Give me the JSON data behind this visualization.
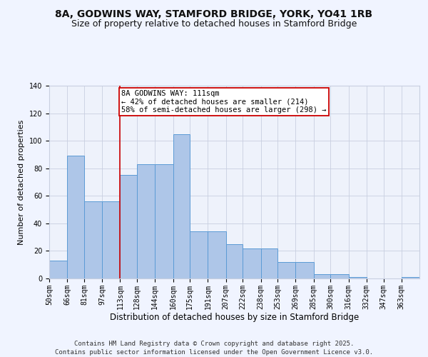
{
  "title_line1": "8A, GODWINS WAY, STAMFORD BRIDGE, YORK, YO41 1RB",
  "title_line2": "Size of property relative to detached houses in Stamford Bridge",
  "xlabel": "Distribution of detached houses by size in Stamford Bridge",
  "ylabel": "Number of detached properties",
  "bins": [
    "50sqm",
    "66sqm",
    "81sqm",
    "97sqm",
    "113sqm",
    "128sqm",
    "144sqm",
    "160sqm",
    "175sqm",
    "191sqm",
    "207sqm",
    "222sqm",
    "238sqm",
    "253sqm",
    "269sqm",
    "285sqm",
    "300sqm",
    "316sqm",
    "332sqm",
    "347sqm",
    "363sqm"
  ],
  "bar_values": [
    13,
    89,
    56,
    56,
    75,
    83,
    83,
    105,
    34,
    34,
    25,
    22,
    22,
    12,
    12,
    3,
    3,
    1,
    0,
    0,
    1
  ],
  "bin_edges": [
    50,
    66,
    81,
    97,
    113,
    128,
    144,
    160,
    175,
    191,
    207,
    222,
    238,
    253,
    269,
    285,
    300,
    316,
    332,
    347,
    363,
    379
  ],
  "bar_color": "#aec6e8",
  "bar_edge_color": "#5b9bd5",
  "vline_x": 113,
  "vline_color": "#cc0000",
  "annotation_text": "8A GODWINS WAY: 111sqm\n← 42% of detached houses are smaller (214)\n58% of semi-detached houses are larger (298) →",
  "annotation_box_color": "#ffffff",
  "annotation_border_color": "#cc0000",
  "ylim": [
    0,
    140
  ],
  "yticks": [
    0,
    20,
    40,
    60,
    80,
    100,
    120,
    140
  ],
  "background_color": "#eef2fb",
  "grid_color": "#c8cfe0",
  "footer_text": "Contains HM Land Registry data © Crown copyright and database right 2025.\nContains public sector information licensed under the Open Government Licence v3.0.",
  "title_fontsize": 10,
  "subtitle_fontsize": 9,
  "ylabel_fontsize": 8,
  "xlabel_fontsize": 8.5,
  "tick_fontsize": 7,
  "footer_fontsize": 6.5,
  "annot_fontsize": 7.5
}
